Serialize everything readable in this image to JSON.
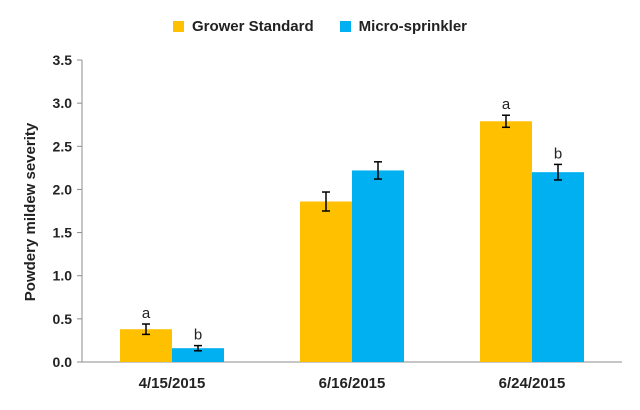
{
  "chart_data": {
    "type": "bar",
    "title": "",
    "xlabel": "",
    "ylabel": "Powdery mildew severity",
    "ylim": [
      0,
      3.5
    ],
    "yticks": [
      "0.0",
      "0.5",
      "1.0",
      "1.5",
      "2.0",
      "2.5",
      "3.0",
      "3.5"
    ],
    "categories": [
      "4/15/2015",
      "6/16/2015",
      "6/24/2015"
    ],
    "grid": false,
    "legend_position": "top",
    "series": [
      {
        "name": "Grower Standard",
        "color": "#FFC000",
        "values": [
          0.38,
          1.86,
          2.79
        ],
        "errors": [
          0.06,
          0.11,
          0.07
        ],
        "labels": [
          "a",
          "",
          "a"
        ]
      },
      {
        "name": "Micro-sprinkler",
        "color": "#00B0F0",
        "values": [
          0.16,
          2.22,
          2.2
        ],
        "errors": [
          0.03,
          0.1,
          0.09
        ],
        "labels": [
          "b",
          "",
          "b"
        ]
      }
    ]
  }
}
